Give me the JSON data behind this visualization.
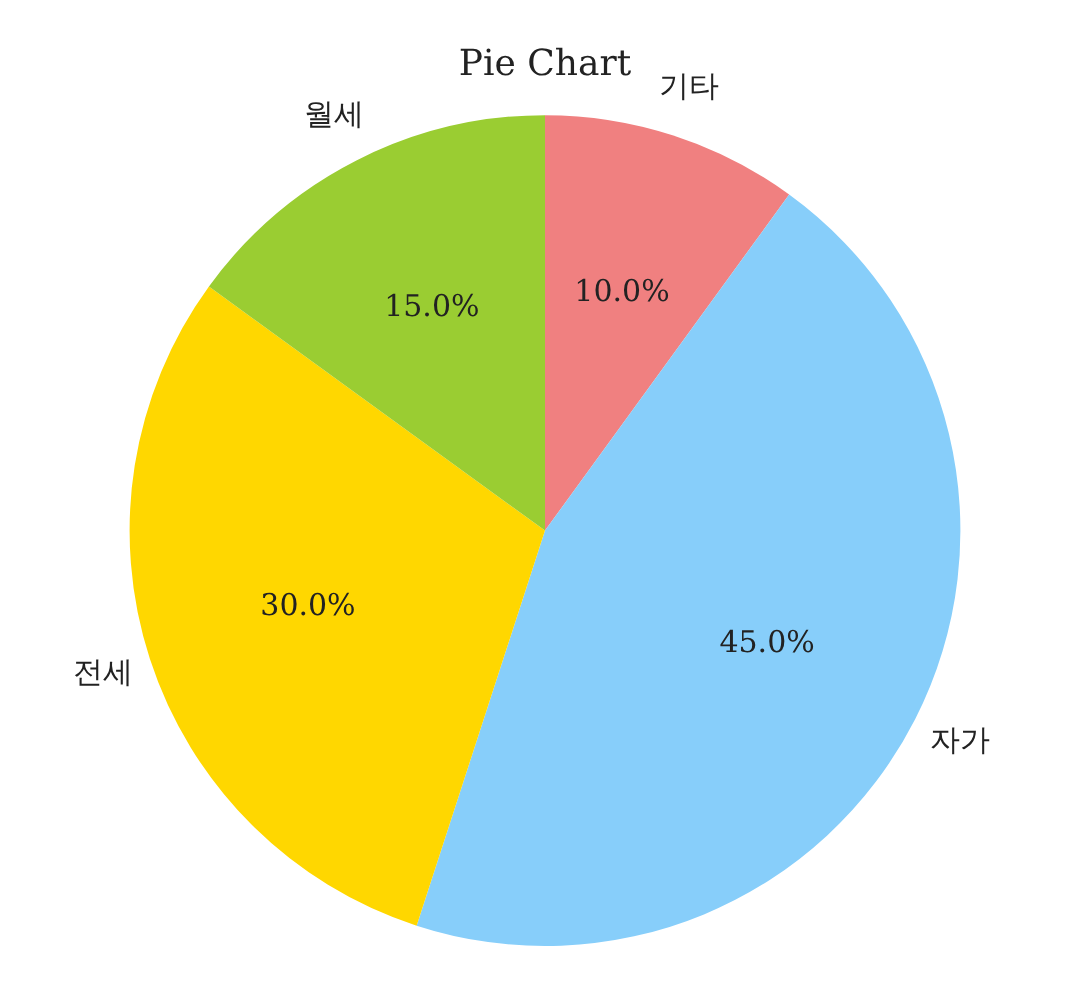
{
  "chart_data": {
    "type": "pie",
    "title": "Pie Chart",
    "categories": [
      "기타",
      "자가",
      "전세",
      "월세"
    ],
    "values": [
      10,
      45,
      30,
      15
    ],
    "colors": [
      "#f08080",
      "#87cefa",
      "#ffd700",
      "#9acd32"
    ],
    "value_labels": [
      "10.0%",
      "45.0%",
      "30.0%",
      "15.0%"
    ],
    "legend": false
  }
}
